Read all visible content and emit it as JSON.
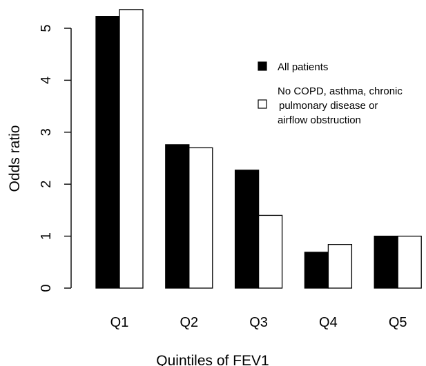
{
  "chart_data": {
    "type": "bar",
    "categories": [
      "Q1",
      "Q2",
      "Q3",
      "Q4",
      "Q5"
    ],
    "series": [
      {
        "name": "All patients",
        "values": [
          5.23,
          2.76,
          2.27,
          0.69,
          1.0
        ],
        "color": "#000000"
      },
      {
        "name": "No COPD, asthma, chronic pulmonary disease or airflow obstruction",
        "name_lines": [
          "No COPD, asthma, chronic",
          "pulmonary disease or",
          "airflow obstruction"
        ],
        "values": [
          5.36,
          2.7,
          1.4,
          0.84,
          1.0
        ],
        "color": "#ffffff"
      }
    ],
    "yticks": [
      "0",
      "1",
      "2",
      "3",
      "4",
      "5"
    ],
    "ylim": [
      0,
      5.5
    ],
    "xlabel": "Quintiles of FEV1",
    "ylabel": "Odds ratio",
    "legend_position": "top-right",
    "grid": false
  }
}
